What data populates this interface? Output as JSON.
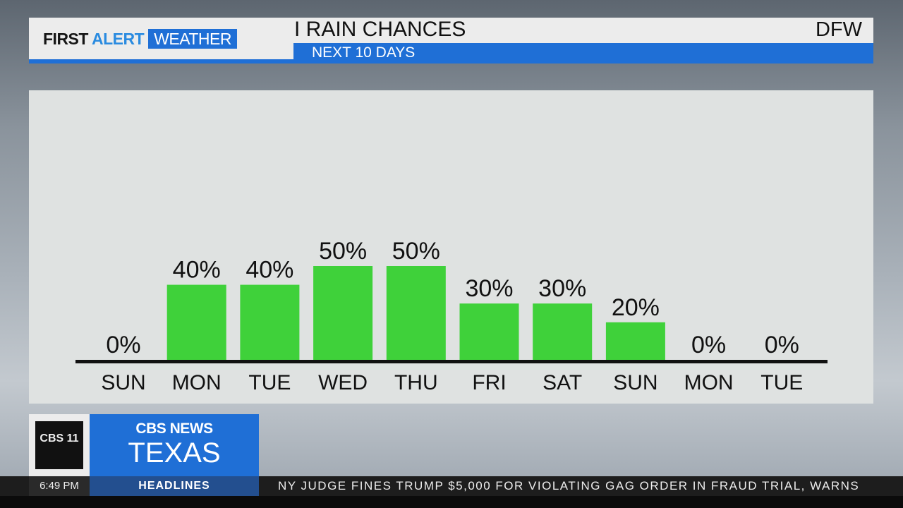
{
  "header": {
    "brand_first": "FIRST",
    "brand_alert": "ALERT",
    "brand_weather": "WEATHER",
    "title": "I RAIN CHANCES",
    "subtitle": "NEXT 10 DAYS",
    "location": "DFW"
  },
  "colors": {
    "bar": "#3fd13a",
    "accent": "#1f6fd6"
  },
  "chart_data": {
    "type": "bar",
    "title": "RAIN CHANCES",
    "subtitle": "NEXT 10 DAYS",
    "categories": [
      "SUN",
      "MON",
      "TUE",
      "WED",
      "THU",
      "FRI",
      "SAT",
      "SUN",
      "MON",
      "TUE"
    ],
    "values": [
      0,
      40,
      40,
      50,
      50,
      30,
      30,
      20,
      0,
      0
    ],
    "labels": [
      "0%",
      "40%",
      "40%",
      "50%",
      "50%",
      "30%",
      "30%",
      "20%",
      "0%",
      "0%"
    ],
    "unit": "%",
    "ylim": [
      0,
      100
    ],
    "grid": false,
    "legend": "none"
  },
  "logo": {
    "station": "CBS 11",
    "network": "CBS NEWS",
    "region": "TEXAS"
  },
  "ticker": {
    "time": "6:49 PM",
    "section": "HEADLINES",
    "headline": "NY JUDGE FINES TRUMP $5,000 FOR VIOLATING GAG ORDER IN FRAUD TRIAL, WARNS"
  }
}
